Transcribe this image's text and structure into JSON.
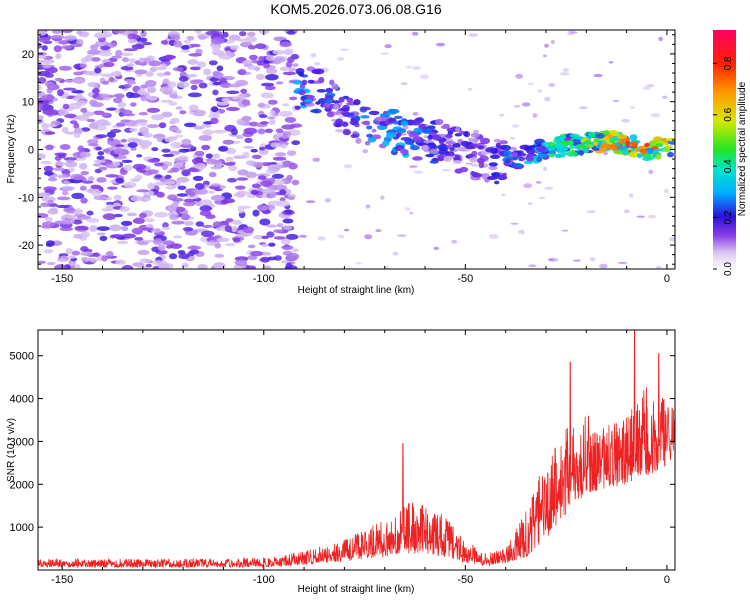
{
  "title": "KOM5.2026.073.06.08.G16",
  "chart_data": [
    {
      "type": "heatmap",
      "xlabel": "Height of straight line (km)",
      "ylabel": "Frequency (Hz)",
      "xlim": [
        -156,
        2
      ],
      "ylim": [
        -25,
        25
      ],
      "xticks": [
        -150,
        -100,
        -50,
        0
      ],
      "yticks": [
        -20,
        -10,
        0,
        10,
        20
      ],
      "colorbar": {
        "label": "Normalized spectral amplitude",
        "range": [
          0,
          0.93
        ],
        "ticks": [
          0.0,
          0.2,
          0.4,
          0.6,
          0.8
        ]
      },
      "ridge": {
        "x": [
          -92,
          -85,
          -80,
          -75,
          -70,
          -65,
          -60,
          -55,
          -50,
          -45,
          -40,
          -35,
          -30,
          -25,
          -20,
          -15,
          -10,
          -5,
          0
        ],
        "frequency_hz": [
          13,
          12,
          8,
          5,
          4,
          3,
          2,
          1,
          -1,
          -2,
          -3,
          -1,
          0,
          1,
          1,
          2,
          1,
          0,
          0.5
        ],
        "amplitude": [
          0.3,
          0.25,
          0.2,
          0.25,
          0.3,
          0.3,
          0.25,
          0.2,
          0.2,
          0.15,
          0.25,
          0.3,
          0.4,
          0.45,
          0.55,
          0.65,
          0.75,
          0.8,
          0.6
        ]
      }
    },
    {
      "type": "line",
      "xlabel": "Height of straight line (km)",
      "ylabel": "SNR (10 * v/v)",
      "xlim": [
        -156,
        2
      ],
      "ylim": [
        0,
        5600
      ],
      "xticks": [
        -150,
        -100,
        -50,
        0
      ],
      "yticks": [
        1000,
        2000,
        3000,
        4000,
        5000
      ],
      "color": "#ee2222",
      "envelope_x": [
        -156,
        -110,
        -98,
        -90,
        -80,
        -70,
        -65,
        -60,
        -55,
        -50,
        -45,
        -40,
        -35,
        -30,
        -25,
        -20,
        -15,
        -10,
        -5,
        0,
        2
      ],
      "envelope_low": [
        60,
        60,
        80,
        120,
        200,
        300,
        400,
        350,
        300,
        150,
        100,
        150,
        300,
        700,
        1300,
        1800,
        1900,
        2000,
        2200,
        2400,
        2700
      ],
      "envelope_high": [
        260,
        260,
        300,
        450,
        700,
        1200,
        1600,
        1500,
        1300,
        700,
        400,
        500,
        1400,
        2600,
        3300,
        3700,
        3400,
        3600,
        4300,
        4000,
        3700
      ],
      "peaks": [
        {
          "x": -65.5,
          "y": 2950
        },
        {
          "x": -24,
          "y": 4850
        },
        {
          "x": -8,
          "y": 5600
        },
        {
          "x": -2,
          "y": 5050
        }
      ]
    }
  ]
}
